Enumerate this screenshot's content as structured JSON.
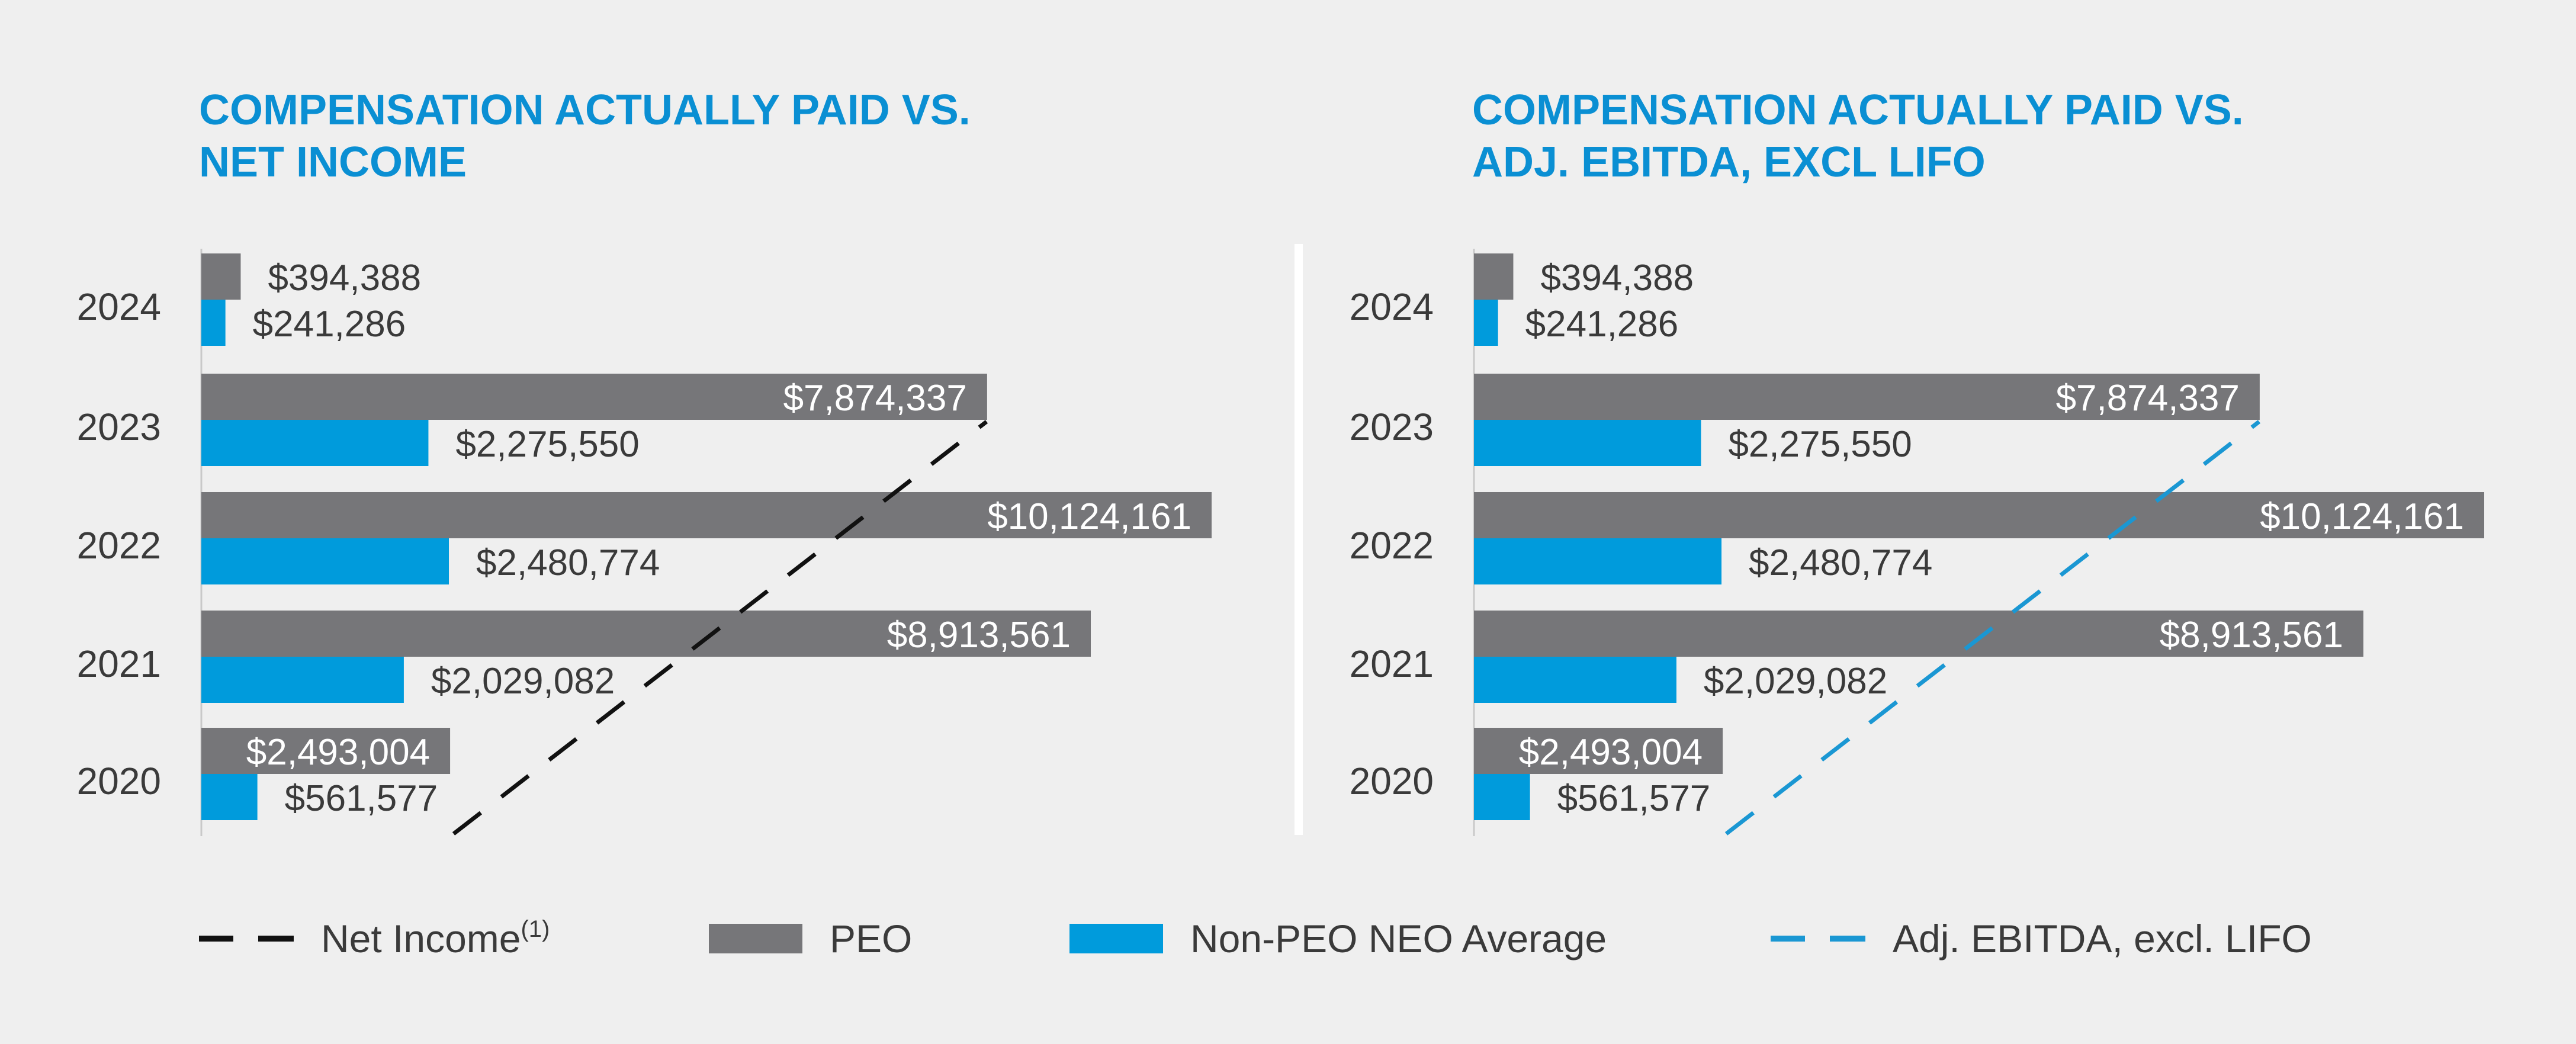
{
  "colors": {
    "background": "#efefef",
    "title": "#0a8fd3",
    "peo": "#767679",
    "non_peo": "#009bdc",
    "net_income_line": "#111111",
    "ebitda_line": "#1a97d3",
    "label_dark": "#3a3a3a",
    "label_light": "#ffffff",
    "divider": "#ffffff"
  },
  "chart_data": [
    {
      "type": "bar",
      "orientation": "horizontal",
      "title_lines": [
        "COMPENSATION ACTUALLY PAID VS.",
        "NET INCOME"
      ],
      "categories": [
        "2024",
        "2023",
        "2022",
        "2021",
        "2020"
      ],
      "series": [
        {
          "name": "PEO",
          "values": [
            394388,
            7874337,
            10124161,
            8913561,
            2493004
          ],
          "labels": [
            "$394,388",
            "$7,874,337",
            "$10,124,161",
            "$8,913,561",
            "$2,493,004"
          ]
        },
        {
          "name": "Non-PEO NEO Average",
          "values": [
            241286,
            2275550,
            2480774,
            2029082,
            561577
          ],
          "labels": [
            "$241,286",
            "$2,275,550",
            "$2,480,774",
            "$2,029,082",
            "$561,577"
          ]
        }
      ],
      "overlay_line": {
        "name": "Net Income",
        "style": "dashed",
        "trend": "increasing from 2020 to 2023, no value shown for 2024"
      },
      "xlim": [
        0,
        10124161
      ]
    },
    {
      "type": "bar",
      "orientation": "horizontal",
      "title_lines": [
        "COMPENSATION ACTUALLY PAID VS.",
        "ADJ. EBITDA, EXCL LIFO"
      ],
      "categories": [
        "2024",
        "2023",
        "2022",
        "2021",
        "2020"
      ],
      "series": [
        {
          "name": "PEO",
          "values": [
            394388,
            7874337,
            10124161,
            8913561,
            2493004
          ],
          "labels": [
            "$394,388",
            "$7,874,337",
            "$10,124,161",
            "$8,913,561",
            "$2,493,004"
          ]
        },
        {
          "name": "Non-PEO NEO Average",
          "values": [
            241286,
            2275550,
            2480774,
            2029082,
            561577
          ],
          "labels": [
            "$241,286",
            "$2,275,550",
            "$2,480,774",
            "$2,029,082",
            "$561,577"
          ]
        }
      ],
      "overlay_line": {
        "name": "Adj. EBITDA, excl. LIFO",
        "style": "dashed",
        "trend": "increasing from 2020 to 2023, no value shown for 2024"
      },
      "xlim": [
        0,
        10124161
      ]
    }
  ],
  "legend": {
    "net_income": "Net Income",
    "net_income_sup": "(1)",
    "peo": "PEO",
    "non_peo": "Non-PEO NEO Average",
    "ebitda": "Adj. EBITDA, excl. LIFO"
  }
}
